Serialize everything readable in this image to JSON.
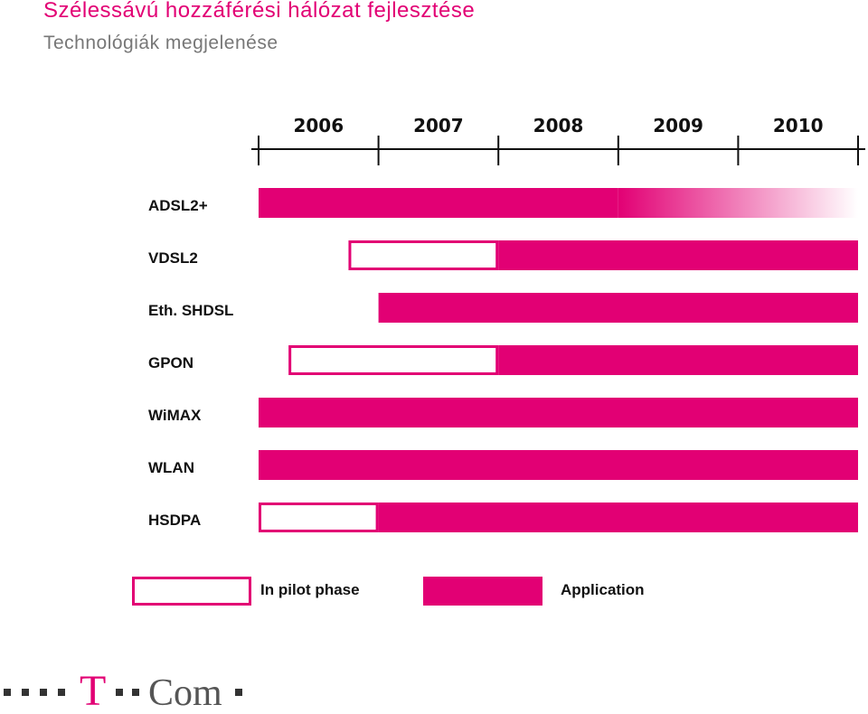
{
  "header": {
    "title": "Szélessávú  hozzáférési  hálózat  fejlesztése",
    "subtitle": "Technológiák  megjelenése"
  },
  "chart_data": {
    "type": "bar",
    "orientation": "horizontal-timeline",
    "x_ticks": [
      "2006",
      "2007",
      "2008",
      "2009",
      "2010"
    ],
    "xlim": [
      2006,
      2011
    ],
    "categories": [
      "ADSL2+",
      "VDSL2",
      "Eth.  SHDSL",
      "GPON",
      "WiMAX",
      "WLAN",
      "HSDPA"
    ],
    "series": [
      {
        "name": "In  pilot  phase",
        "ranges": [
          null,
          [
            2006.75,
            2008
          ],
          null,
          [
            2006.25,
            2008
          ],
          null,
          null,
          [
            2006,
            2007
          ]
        ]
      },
      {
        "name": "Application",
        "ranges": [
          [
            2006,
            2011
          ],
          [
            2008,
            2011
          ],
          [
            2007,
            2011
          ],
          [
            2008,
            2011
          ],
          [
            2006,
            2011
          ],
          [
            2006,
            2011
          ],
          [
            2007,
            2011
          ]
        ]
      }
    ],
    "fade_from": [
      2009,
      null,
      null,
      null,
      null,
      null,
      null
    ],
    "legend_position": "bottom"
  },
  "legend": {
    "pilot_label": "In  pilot  phase",
    "application_label": "Application"
  },
  "logo": {
    "text_t": "T",
    "text_com": "Com",
    "icon": "t-com-logo"
  },
  "colors": {
    "accent": "#e20074",
    "text": "#111111",
    "subtitle": "#777777"
  }
}
